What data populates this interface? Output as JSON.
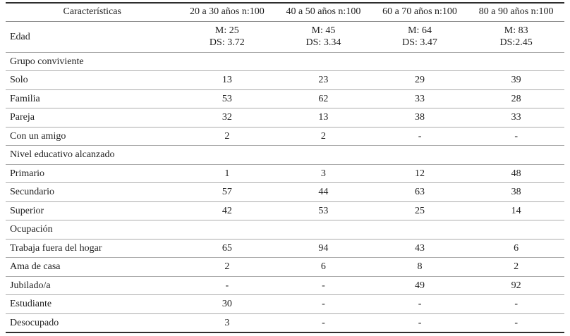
{
  "table": {
    "columns": [
      "Características",
      "20 a 30 años n:100",
      "40 a 50 años n:100",
      "60 a 70 años n:100",
      "80 a 90 años n:100"
    ],
    "rows": [
      {
        "section": false,
        "label": "Edad",
        "values": [
          [
            "M: 25",
            "DS: 3.72"
          ],
          [
            "M: 45",
            "DS: 3.34"
          ],
          [
            "M: 64",
            "DS: 3.47"
          ],
          [
            "M: 83",
            "DS:2.45"
          ]
        ]
      },
      {
        "section": true,
        "label": "Grupo conviviente"
      },
      {
        "section": false,
        "label": "Solo",
        "values": [
          "13",
          "23",
          "29",
          "39"
        ]
      },
      {
        "section": false,
        "label": "Familia",
        "values": [
          "53",
          "62",
          "33",
          "28"
        ]
      },
      {
        "section": false,
        "label": "Pareja",
        "values": [
          "32",
          "13",
          "38",
          "33"
        ]
      },
      {
        "section": false,
        "label": "Con un amigo",
        "values": [
          "2",
          "2",
          "-",
          "-"
        ]
      },
      {
        "section": true,
        "label": "Nivel educativo alcanzado"
      },
      {
        "section": false,
        "label": "Primario",
        "values": [
          "1",
          "3",
          "12",
          "48"
        ]
      },
      {
        "section": false,
        "label": "Secundario",
        "values": [
          "57",
          "44",
          "63",
          "38"
        ]
      },
      {
        "section": false,
        "label": "Superior",
        "values": [
          "42",
          "53",
          "25",
          "14"
        ]
      },
      {
        "section": true,
        "label": "Ocupación"
      },
      {
        "section": false,
        "label": "Trabaja fuera del hogar",
        "values": [
          "65",
          "94",
          "43",
          "6"
        ]
      },
      {
        "section": false,
        "label": "Ama de casa",
        "values": [
          "2",
          "6",
          "8",
          "2"
        ]
      },
      {
        "section": false,
        "label": "Jubilado/a",
        "values": [
          "-",
          "-",
          "49",
          "92"
        ]
      },
      {
        "section": false,
        "label": "Estudiante",
        "values": [
          "30",
          "-",
          "-",
          "-"
        ]
      },
      {
        "section": false,
        "label": "Desocupado",
        "values": [
          "3",
          "-",
          "-",
          "-"
        ]
      }
    ]
  }
}
